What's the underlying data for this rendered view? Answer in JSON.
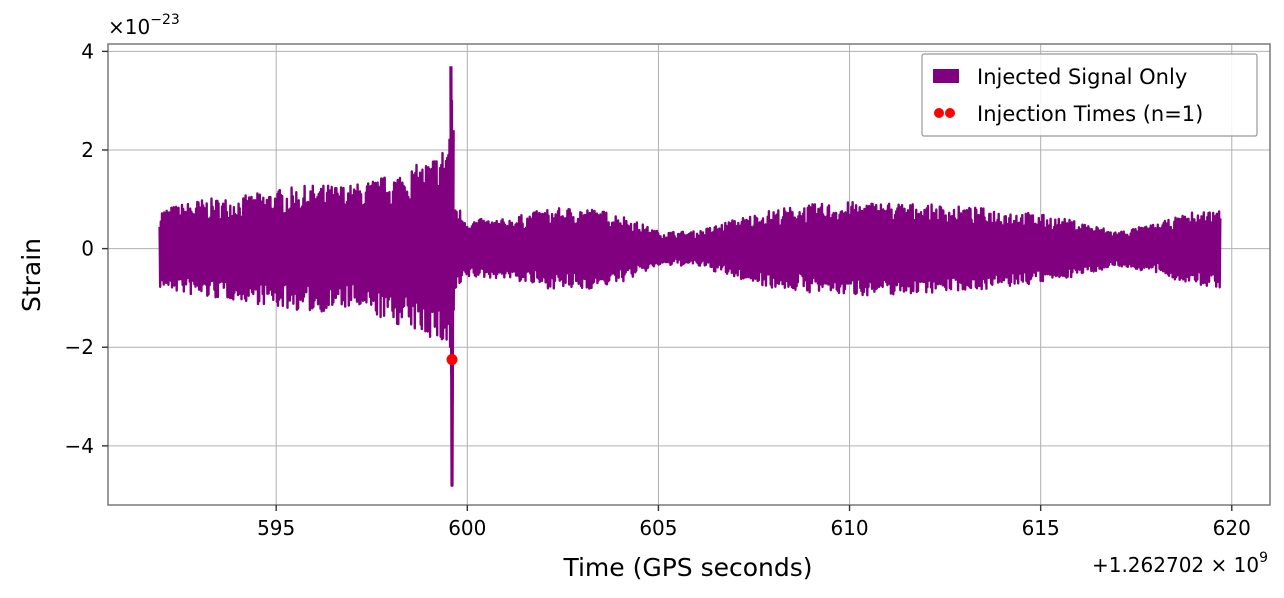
{
  "chart_data": {
    "type": "line",
    "xlabel": "Time (GPS seconds)",
    "ylabel": "Strain",
    "x_offset_label": "+1.262702 × 10",
    "x_offset_exp": "9",
    "y_scale_label": "×10",
    "y_scale_exp": "−23",
    "xlim": [
      590.6,
      621.0
    ],
    "ylim": [
      -5.2,
      4.15
    ],
    "x_ticks": [
      595,
      600,
      605,
      610,
      615,
      620
    ],
    "x_tick_labels": [
      "595",
      "600",
      "605",
      "610",
      "615",
      "620"
    ],
    "y_ticks": [
      -4,
      -2,
      0,
      2,
      4
    ],
    "y_tick_labels": [
      "−4",
      "−2",
      "0",
      "2",
      "4"
    ],
    "grid": true,
    "legend_position": "top-right",
    "colors": {
      "signal": "#800080",
      "injection": "#ff0000",
      "grid": "#b0b0b0"
    },
    "series": [
      {
        "name": "Injected Signal Only",
        "kind": "line",
        "x_range": [
          591.95,
          619.7
        ],
        "envelope": [
          [
            591.95,
            0.8,
            -0.8
          ],
          [
            593.0,
            1.0,
            -1.0
          ],
          [
            594.0,
            1.05,
            -1.05
          ],
          [
            595.0,
            1.2,
            -1.2
          ],
          [
            596.0,
            1.3,
            -1.3
          ],
          [
            597.0,
            1.3,
            -1.2
          ],
          [
            598.0,
            1.5,
            -1.5
          ],
          [
            599.0,
            1.8,
            -1.8
          ],
          [
            599.4,
            2.1,
            -2.0
          ],
          [
            599.55,
            2.6,
            -2.2
          ],
          [
            599.6,
            3.7,
            -4.8
          ],
          [
            599.65,
            1.0,
            -1.0
          ],
          [
            600.0,
            0.6,
            -0.6
          ],
          [
            601.0,
            0.6,
            -0.6
          ],
          [
            602.0,
            0.8,
            -0.8
          ],
          [
            603.0,
            0.85,
            -0.85
          ],
          [
            604.0,
            0.7,
            -0.7
          ],
          [
            605.0,
            0.35,
            -0.35
          ],
          [
            606.0,
            0.35,
            -0.35
          ],
          [
            607.0,
            0.6,
            -0.6
          ],
          [
            608.0,
            0.8,
            -0.8
          ],
          [
            609.0,
            0.9,
            -0.9
          ],
          [
            610.0,
            0.95,
            -0.95
          ],
          [
            611.0,
            0.95,
            -0.95
          ],
          [
            612.0,
            0.9,
            -0.9
          ],
          [
            613.0,
            0.85,
            -0.85
          ],
          [
            614.0,
            0.8,
            -0.8
          ],
          [
            615.0,
            0.7,
            -0.7
          ],
          [
            616.0,
            0.55,
            -0.55
          ],
          [
            617.0,
            0.35,
            -0.35
          ],
          [
            618.0,
            0.5,
            -0.5
          ],
          [
            619.0,
            0.75,
            -0.75
          ],
          [
            619.7,
            0.8,
            -0.8
          ]
        ]
      },
      {
        "name": "Injection Times (n=1)",
        "kind": "scatter",
        "points": [
          {
            "x": 599.6,
            "y": -2.25
          }
        ]
      }
    ]
  }
}
